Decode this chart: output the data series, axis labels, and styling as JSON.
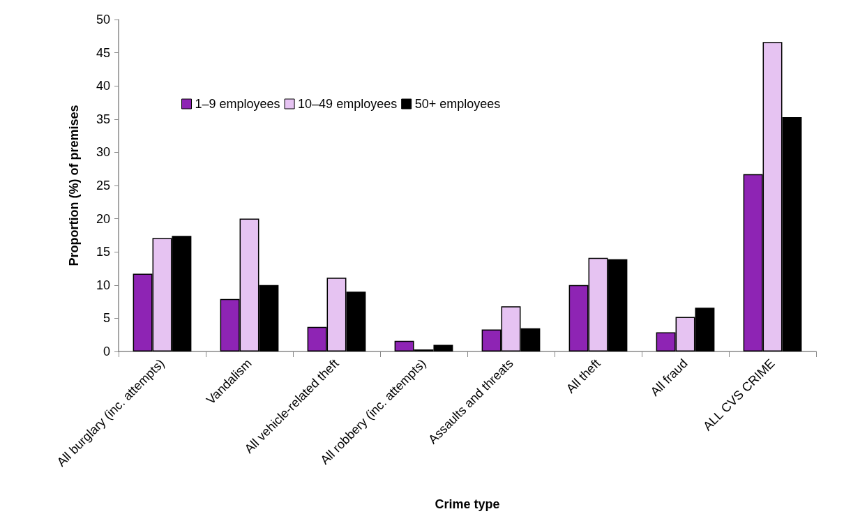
{
  "chart_data": {
    "type": "bar",
    "xlabel": "Crime type",
    "ylabel": "Proportion (%) of premises",
    "categories": [
      "All burglary (inc. attempts)",
      "Vandalism",
      "All vehicle-related theft",
      "All robbery (inc. attempts)",
      "Assaults and threats",
      "All theft",
      "All fraud",
      "ALL CVS CRIME"
    ],
    "series": [
      {
        "name": "1–9 employees",
        "color": "#8e24b4",
        "values": [
          11.7,
          7.9,
          3.7,
          1.6,
          3.3,
          10.0,
          2.9,
          26.7
        ]
      },
      {
        "name": "10–49 employees",
        "color": "#e6c3f2",
        "values": [
          17.1,
          20.0,
          11.1,
          0.3,
          6.8,
          14.1,
          5.2,
          46.6
        ]
      },
      {
        "name": "50+ employees",
        "color": "#000000",
        "values": [
          17.4,
          10.0,
          9.0,
          1.0,
          3.5,
          13.9,
          6.6,
          35.3
        ]
      }
    ],
    "ylim": [
      0,
      50
    ],
    "yticks": [
      0,
      5,
      10,
      15,
      20,
      25,
      30,
      35,
      40,
      45,
      50
    ],
    "grid": false,
    "legend": "top left"
  }
}
